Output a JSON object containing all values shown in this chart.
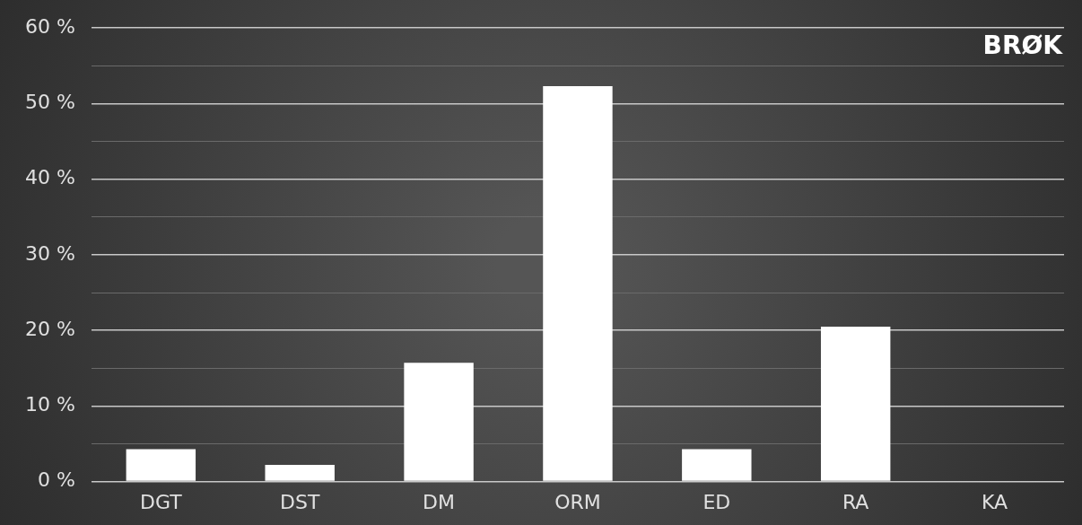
{
  "chart_data": {
    "type": "bar",
    "title": "BRØK",
    "categories": [
      "DGT",
      "DST",
      "DM",
      "ORM",
      "ED",
      "RA",
      "KA"
    ],
    "values": [
      4.3,
      2.2,
      15.7,
      52.3,
      4.3,
      20.5,
      0
    ],
    "color": "#ffffff",
    "ylim": [
      0,
      60
    ],
    "yticks": [
      {
        "value": 0,
        "label": "0 %"
      },
      {
        "value": 5,
        "label": null
      },
      {
        "value": 10,
        "label": "10 %"
      },
      {
        "value": 15,
        "label": null
      },
      {
        "value": 20,
        "label": "20 %"
      },
      {
        "value": 25,
        "label": null
      },
      {
        "value": 30,
        "label": "30 %"
      },
      {
        "value": 35,
        "label": null
      },
      {
        "value": 40,
        "label": "40 %"
      },
      {
        "value": 45,
        "label": null
      },
      {
        "value": 50,
        "label": "50 %"
      },
      {
        "value": 55,
        "label": null
      },
      {
        "value": 60,
        "label": "60 %"
      }
    ],
    "grid": "y",
    "legend": false
  }
}
